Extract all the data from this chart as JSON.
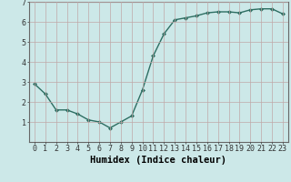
{
  "x": [
    0,
    1,
    2,
    3,
    4,
    5,
    6,
    7,
    8,
    9,
    10,
    11,
    12,
    13,
    14,
    15,
    16,
    17,
    18,
    19,
    20,
    21,
    22,
    23
  ],
  "y": [
    2.9,
    2.4,
    1.6,
    1.6,
    1.4,
    1.1,
    1.0,
    0.7,
    1.0,
    1.3,
    2.6,
    4.3,
    5.4,
    6.1,
    6.2,
    6.3,
    6.45,
    6.5,
    6.5,
    6.45,
    6.6,
    6.65,
    6.65,
    6.4
  ],
  "xlabel": "Humidex (Indice chaleur)",
  "ylim": [
    0,
    7
  ],
  "xlim": [
    -0.5,
    23.5
  ],
  "yticks": [
    1,
    2,
    3,
    4,
    5,
    6,
    7
  ],
  "xticks": [
    0,
    1,
    2,
    3,
    4,
    5,
    6,
    7,
    8,
    9,
    10,
    11,
    12,
    13,
    14,
    15,
    16,
    17,
    18,
    19,
    20,
    21,
    22,
    23
  ],
  "xtick_labels": [
    "0",
    "1",
    "2",
    "3",
    "4",
    "5",
    "6",
    "7",
    "8",
    "9",
    "10",
    "11",
    "12",
    "13",
    "14",
    "15",
    "16",
    "17",
    "18",
    "19",
    "20",
    "21",
    "22",
    "23"
  ],
  "line_color": "#2d6e62",
  "marker": "D",
  "marker_size": 2.0,
  "bg_color": "#cce8e8",
  "grid_color": "#c0a8a8",
  "xlabel_fontsize": 7.5,
  "tick_fontsize": 6.0,
  "line_width": 1.0
}
